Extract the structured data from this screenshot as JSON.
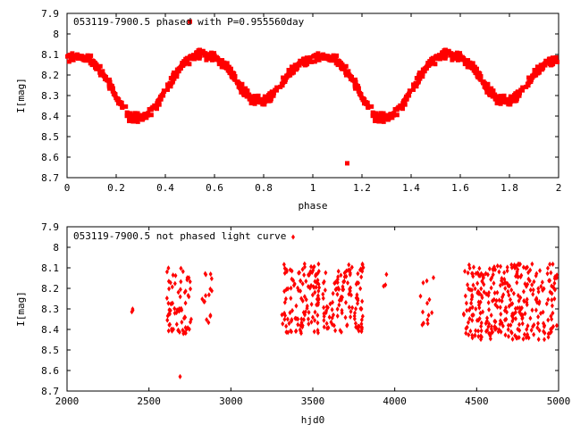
{
  "chart_data": [
    {
      "type": "scatter",
      "title": "053119-7900.5 phased with P=0.955560day",
      "xlabel": "phase",
      "ylabel": "I[mag]",
      "xlim": [
        0,
        2
      ],
      "ylim": [
        8.7,
        7.9
      ],
      "y_inverted": true,
      "xticks": [
        "0",
        "0.2",
        "0.4",
        "0.6",
        "0.8",
        "1",
        "1.2",
        "1.4",
        "1.6",
        "1.8",
        "2"
      ],
      "yticks": [
        "7.9",
        "8",
        "8.1",
        "8.2",
        "8.3",
        "8.4",
        "8.5",
        "8.6",
        "8.7"
      ],
      "marker_color": "#ff0000",
      "marker": "filled-square",
      "outliers": [
        [
          0.5,
          7.94
        ],
        [
          1.14,
          8.63
        ]
      ],
      "light_curve": {
        "phase": [
          0.0,
          0.05,
          0.1,
          0.15,
          0.2,
          0.25,
          0.3,
          0.35,
          0.4,
          0.45,
          0.5,
          0.55,
          0.6,
          0.65,
          0.7,
          0.75,
          0.8,
          0.85,
          0.9,
          0.95,
          1.0
        ],
        "mag": [
          8.12,
          8.11,
          8.13,
          8.2,
          8.3,
          8.4,
          8.41,
          8.37,
          8.28,
          8.18,
          8.12,
          8.1,
          8.11,
          8.16,
          8.25,
          8.32,
          8.33,
          8.28,
          8.2,
          8.14,
          8.12
        ]
      },
      "scatter_mag": 0.03
    },
    {
      "type": "scatter",
      "title": "053119-7900.5 not phased light curve",
      "xlabel": "hjd0",
      "ylabel": "I[mag]",
      "xlim": [
        2000,
        5000
      ],
      "ylim": [
        8.7,
        7.9
      ],
      "y_inverted": true,
      "xticks": [
        "2000",
        "2500",
        "3000",
        "3500",
        "4000",
        "4500",
        "5000"
      ],
      "yticks": [
        "7.9",
        "8",
        "8.1",
        "8.2",
        "8.3",
        "8.4",
        "8.5",
        "8.6",
        "8.7"
      ],
      "marker_color": "#ff0000",
      "marker": "diamond",
      "outliers": [
        [
          3380,
          7.95
        ],
        [
          2690,
          8.63
        ]
      ],
      "observing_seasons": [
        {
          "start": 2395,
          "end": 2405,
          "mag_min": 8.3,
          "mag_max": 8.34,
          "count": 3
        },
        {
          "start": 2610,
          "end": 2760,
          "mag_min": 8.1,
          "mag_max": 8.42,
          "count": 70
        },
        {
          "start": 2820,
          "end": 2890,
          "mag_min": 8.12,
          "mag_max": 8.4,
          "count": 15
        },
        {
          "start": 3310,
          "end": 3540,
          "mag_min": 8.08,
          "mag_max": 8.42,
          "count": 120
        },
        {
          "start": 3560,
          "end": 3810,
          "mag_min": 8.08,
          "mag_max": 8.42,
          "count": 120
        },
        {
          "start": 3930,
          "end": 3950,
          "mag_min": 8.12,
          "mag_max": 8.2,
          "count": 3
        },
        {
          "start": 4150,
          "end": 4240,
          "mag_min": 8.12,
          "mag_max": 8.38,
          "count": 14
        },
        {
          "start": 4420,
          "end": 4990,
          "mag_min": 8.08,
          "mag_max": 8.45,
          "count": 330
        }
      ]
    }
  ]
}
